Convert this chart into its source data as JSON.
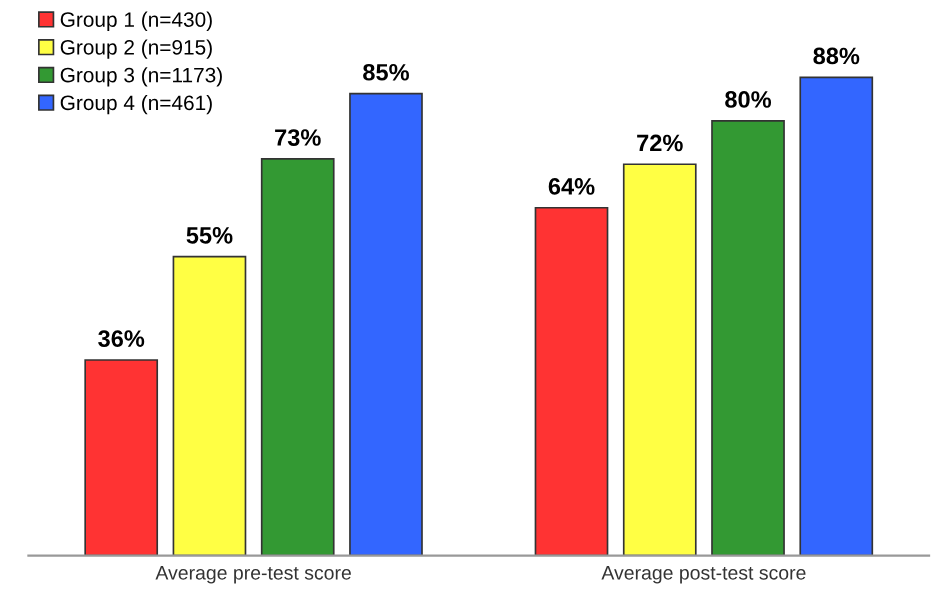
{
  "chart_data": {
    "type": "bar",
    "categories": [
      "Average pre-test score",
      "Average post-test score"
    ],
    "series": [
      {
        "name": "Group 1 (n=430)",
        "color": "#ff3333",
        "values": [
          36,
          64
        ],
        "value_labels": [
          "36%",
          "64%"
        ]
      },
      {
        "name": "Group 2 (n=915)",
        "color": "#ffff44",
        "values": [
          55,
          72
        ],
        "value_labels": [
          "55%",
          "72%"
        ]
      },
      {
        "name": "Group 3 (n=1173)",
        "color": "#339933",
        "values": [
          73,
          80
        ],
        "value_labels": [
          "73%",
          "80%"
        ]
      },
      {
        "name": "Group 4 (n=461)",
        "color": "#3366ff",
        "values": [
          85,
          88
        ],
        "value_labels": [
          "85%",
          "88%"
        ]
      }
    ],
    "ylim": [
      0,
      100
    ],
    "tick_labels": "x",
    "grid": false,
    "legend": "top left"
  }
}
